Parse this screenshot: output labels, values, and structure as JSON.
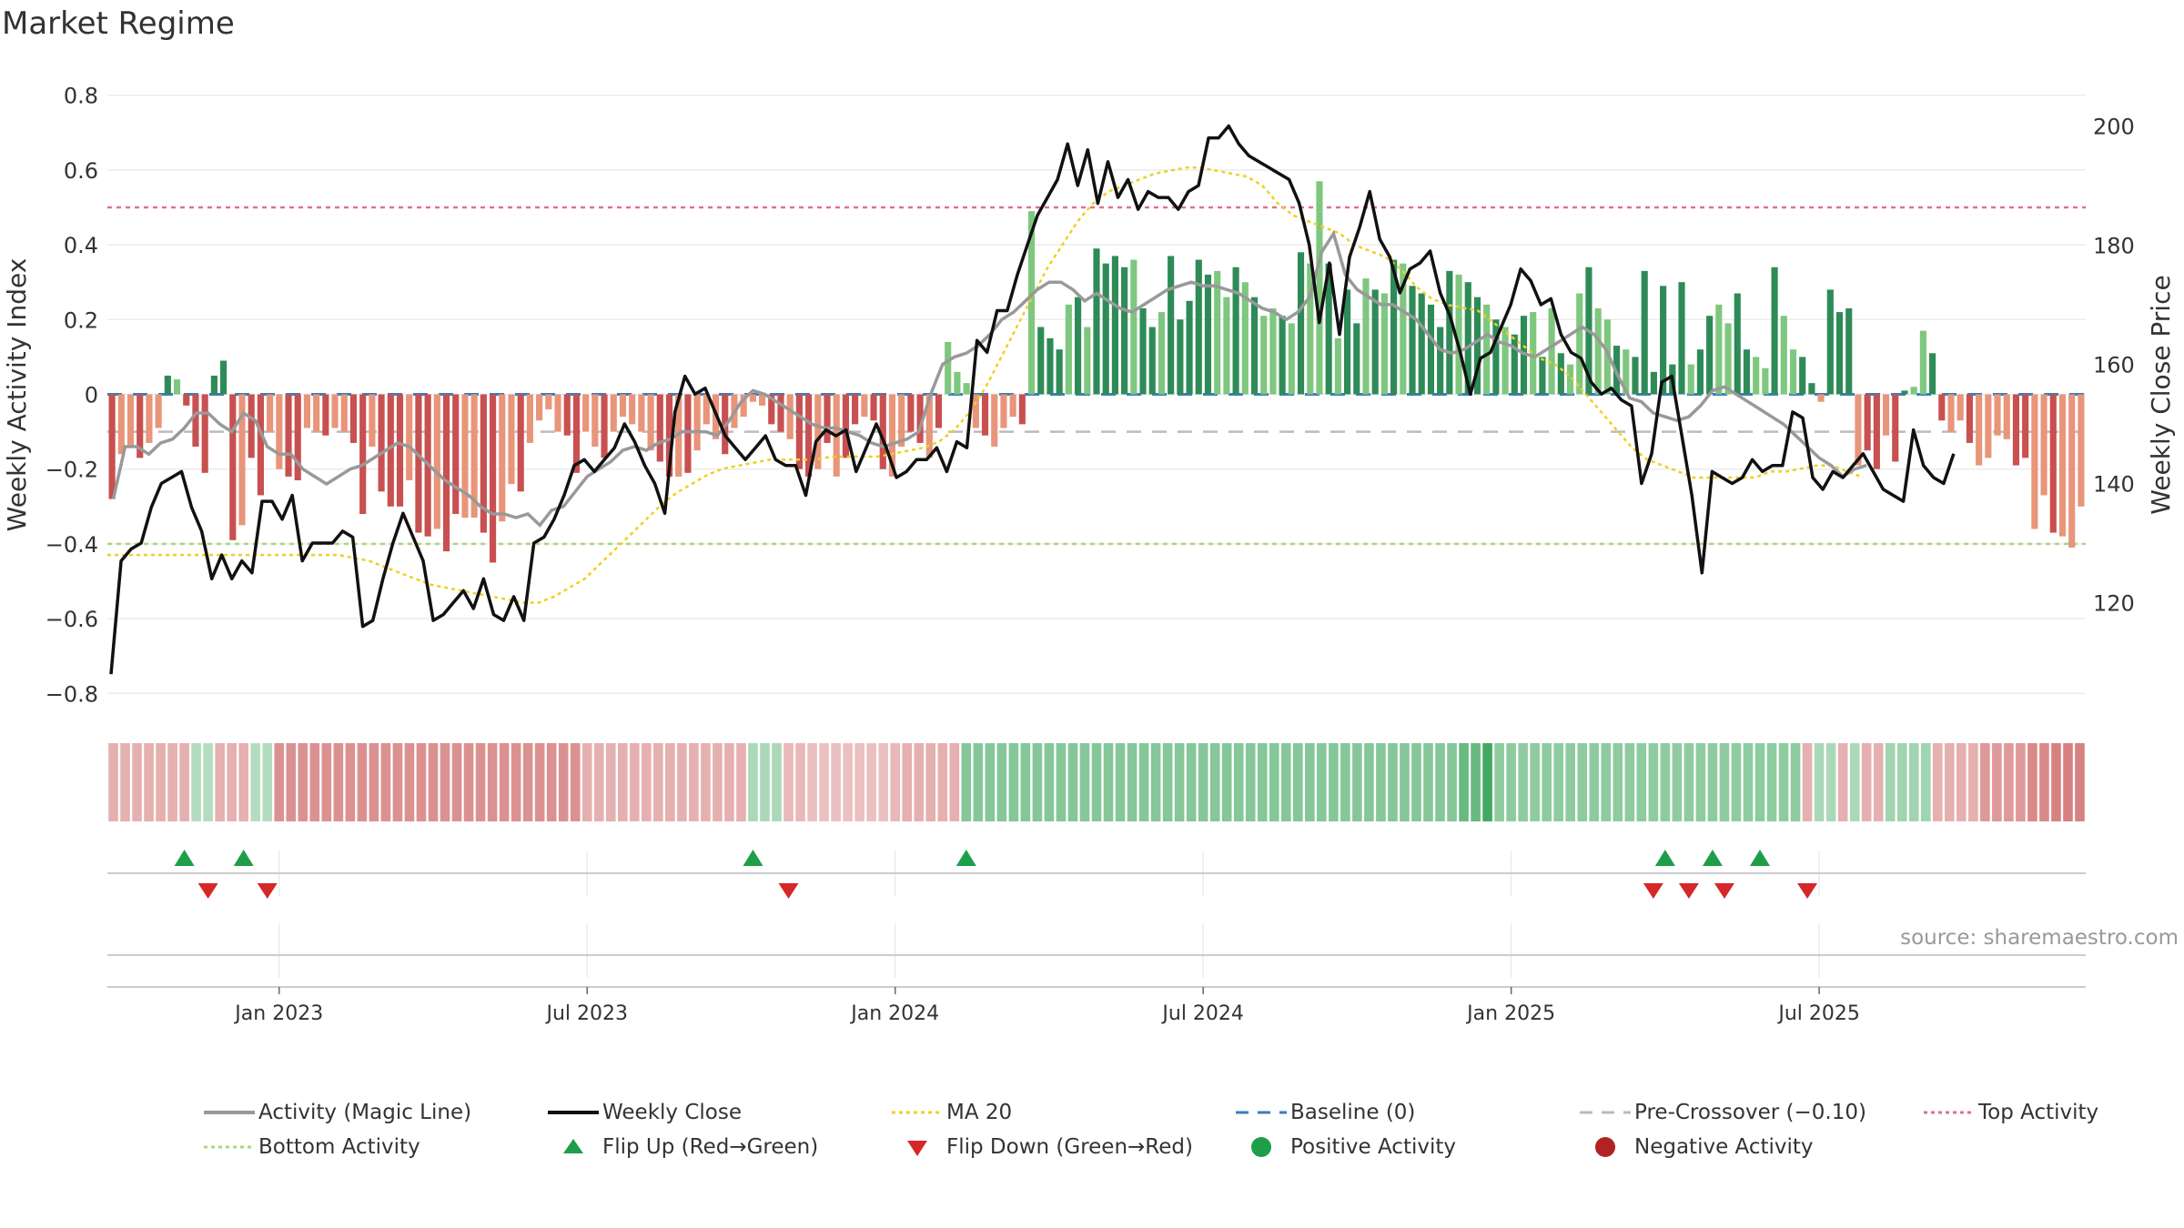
{
  "title": "Market Regime",
  "source": "source: sharemaestro.com",
  "colors": {
    "green_strong": "#2e8b57",
    "green_light": "#7fc77f",
    "red_strong": "#c85050",
    "red_light": "#e8957a",
    "activity_line": "#999999",
    "close_line": "#111111",
    "ma20": "#f0d020",
    "baseline": "#3a7fb8",
    "precross": "#bbbbbb",
    "top_activity": "#e07090",
    "bottom_activity": "#a6d880",
    "flip_up": "#1f9e49",
    "flip_down": "#d62728"
  },
  "legend": [
    {
      "label": "Activity (Magic Line)",
      "icon": "line-solid-grey"
    },
    {
      "label": "Weekly Close",
      "icon": "line-solid-black"
    },
    {
      "label": "MA 20",
      "icon": "line-dotted-yellow"
    },
    {
      "label": "Baseline (0)",
      "icon": "line-dashed-blue"
    },
    {
      "label": "Pre-Crossover (−0.10)",
      "icon": "line-dashed-grey"
    },
    {
      "label": "Top Activity",
      "icon": "line-dotted-pink"
    },
    {
      "label": "Bottom Activity",
      "icon": "line-dotted-green"
    },
    {
      "label": "Flip Up (Red→Green)",
      "icon": "triangle-up-green"
    },
    {
      "label": "Flip Down (Green→Red)",
      "icon": "triangle-down-red"
    },
    {
      "label": "Positive Activity",
      "icon": "circle-green"
    },
    {
      "label": "Negative Activity",
      "icon": "circle-red"
    }
  ],
  "chart_data": {
    "type": "bar",
    "ylabel": "Weekly Activity Index",
    "y2label": "Weekly Close Price",
    "ylim": [
      -0.8,
      0.8
    ],
    "y2lim": [
      105,
      210
    ],
    "yticks": [
      "0.8",
      "0.6",
      "0.4",
      "0.2",
      "0",
      "−0.2",
      "−0.4",
      "−0.6",
      "−0.8"
    ],
    "yticks_values": [
      0.8,
      0.6,
      0.4,
      0.2,
      0,
      -0.2,
      -0.4,
      -0.6,
      -0.8
    ],
    "y2ticks": [
      "200",
      "180",
      "160",
      "140",
      "120"
    ],
    "y2ticks_values": [
      200,
      180,
      160,
      140,
      120
    ],
    "xticks": [
      "Jan 2023",
      "Jul 2023",
      "Jan 2024",
      "Jul 2024",
      "Jan 2025",
      "Jul 2025"
    ],
    "xticks_week": [
      14,
      40,
      66,
      92,
      118,
      144
    ],
    "reference_lines": {
      "baseline": 0,
      "pre_crossover": -0.1,
      "top_activity": 0.5,
      "bottom_activity": -0.4
    },
    "grid": true,
    "legend_position": "bottom",
    "activity": [
      -0.28,
      -0.14,
      -0.14,
      -0.16,
      -0.13,
      -0.12,
      -0.09,
      -0.05,
      -0.05,
      -0.08,
      -0.1,
      -0.05,
      -0.07,
      -0.14,
      -0.16,
      -0.16,
      -0.2,
      -0.22,
      -0.24,
      -0.22,
      -0.2,
      -0.19,
      -0.17,
      -0.15,
      -0.13,
      -0.14,
      -0.17,
      -0.2,
      -0.23,
      -0.25,
      -0.27,
      -0.3,
      -0.32,
      -0.32,
      -0.33,
      -0.32,
      -0.35,
      -0.31,
      -0.3,
      -0.26,
      -0.22,
      -0.2,
      -0.18,
      -0.15,
      -0.14,
      -0.15,
      -0.13,
      -0.12,
      -0.1,
      -0.1,
      -0.1,
      -0.11,
      -0.07,
      -0.02,
      0.01,
      0.0,
      -0.02,
      -0.04,
      -0.06,
      -0.08,
      -0.09,
      -0.09,
      -0.1,
      -0.11,
      -0.13,
      -0.14,
      -0.13,
      -0.12,
      -0.1,
      0.0,
      0.08,
      0.1,
      0.11,
      0.13,
      0.16,
      0.2,
      0.22,
      0.25,
      0.28,
      0.3,
      0.3,
      0.28,
      0.25,
      0.27,
      0.25,
      0.23,
      0.22,
      0.24,
      0.26,
      0.28,
      0.29,
      0.3,
      0.29,
      0.29,
      0.28,
      0.27,
      0.25,
      0.23,
      0.22,
      0.2,
      0.22,
      0.26,
      0.38,
      0.43,
      0.32,
      0.28,
      0.26,
      0.24,
      0.24,
      0.22,
      0.2,
      0.16,
      0.12,
      0.11,
      0.12,
      0.14,
      0.16,
      0.14,
      0.13,
      0.11,
      0.1,
      0.12,
      0.14,
      0.16,
      0.18,
      0.16,
      0.12,
      0.05,
      -0.01,
      -0.02,
      -0.05,
      -0.06,
      -0.07,
      -0.06,
      -0.03,
      0.01,
      0.02,
      0.0,
      -0.02,
      -0.04,
      -0.06,
      -0.08,
      -0.11,
      -0.14,
      -0.17,
      -0.19,
      -0.22,
      -0.2,
      -0.19
    ],
    "bars": [
      -0.28,
      -0.16,
      -0.14,
      -0.17,
      -0.13,
      -0.09,
      0.05,
      0.04,
      -0.03,
      -0.14,
      -0.21,
      0.05,
      0.09,
      -0.39,
      -0.35,
      -0.17,
      -0.27,
      -0.1,
      -0.2,
      -0.22,
      -0.23,
      -0.09,
      -0.1,
      -0.11,
      -0.09,
      -0.1,
      -0.13,
      -0.32,
      -0.14,
      -0.26,
      -0.3,
      -0.3,
      -0.23,
      -0.37,
      -0.38,
      -0.36,
      -0.42,
      -0.32,
      -0.33,
      -0.33,
      -0.37,
      -0.45,
      -0.34,
      -0.24,
      -0.26,
      -0.13,
      -0.07,
      -0.04,
      -0.1,
      -0.11,
      -0.21,
      -0.1,
      -0.14,
      -0.17,
      -0.1,
      -0.06,
      -0.08,
      -0.1,
      -0.15,
      -0.18,
      -0.22,
      -0.22,
      -0.21,
      -0.15,
      -0.08,
      -0.12,
      -0.16,
      -0.09,
      -0.06,
      -0.02,
      -0.03,
      -0.08,
      -0.1,
      -0.12,
      -0.2,
      -0.22,
      -0.2,
      -0.13,
      -0.22,
      -0.17,
      -0.08,
      -0.06,
      -0.07,
      -0.2,
      -0.22,
      -0.14,
      -0.1,
      -0.13,
      -0.17,
      -0.09,
      0.14,
      0.06,
      0.03,
      -0.09,
      -0.11,
      -0.14,
      -0.09,
      -0.06,
      -0.08,
      0.49,
      0.18,
      0.15,
      0.12,
      0.24,
      0.26,
      0.18,
      0.39,
      0.35,
      0.37,
      0.34,
      0.36,
      0.23,
      0.18,
      0.22,
      0.37,
      0.2,
      0.25,
      0.36,
      0.32,
      0.33,
      0.26,
      0.34,
      0.3,
      0.26,
      0.21,
      0.23,
      0.21,
      0.19,
      0.38,
      0.35,
      0.57,
      0.35,
      0.15,
      0.28,
      0.19,
      0.31,
      0.28,
      0.27,
      0.36,
      0.35,
      0.29,
      0.27,
      0.24,
      0.18,
      0.33,
      0.32,
      0.3,
      0.26,
      0.24,
      0.2,
      0.18,
      0.16,
      0.21,
      0.22,
      0.1,
      0.23,
      0.11,
      0.08,
      0.27,
      0.34,
      0.23,
      0.2,
      0.13,
      0.12,
      0.1,
      0.33,
      0.06,
      0.29,
      0.08,
      0.3,
      0.08,
      0.12,
      0.21,
      0.24,
      0.19,
      0.27,
      0.12,
      0.1,
      0.07,
      0.34,
      0.21,
      0.12,
      0.1,
      0.03,
      -0.02,
      0.28,
      0.22,
      0.23,
      -0.19,
      -0.15,
      -0.2,
      -0.11,
      -0.18,
      0.01,
      0.02,
      0.17,
      0.11,
      -0.07,
      -0.1,
      -0.07,
      -0.13,
      -0.19,
      -0.17,
      -0.11,
      -0.12,
      -0.19,
      -0.17,
      -0.36,
      -0.27,
      -0.37,
      -0.38,
      -0.41,
      -0.3
    ],
    "bar_strength": [
      1,
      0,
      0,
      1,
      0,
      0,
      1,
      0,
      1,
      1,
      1,
      1,
      1,
      1,
      0,
      1,
      1,
      0,
      0,
      1,
      1,
      0,
      0,
      1,
      0,
      0,
      1,
      1,
      0,
      1,
      1,
      1,
      0,
      1,
      1,
      0,
      1,
      1,
      0,
      0,
      1,
      1,
      0,
      0,
      1,
      0,
      0,
      0,
      0,
      1,
      1,
      0,
      0,
      1,
      0,
      0,
      0,
      0,
      0,
      1,
      1,
      0,
      1,
      0,
      0,
      0,
      1,
      0,
      0,
      0,
      0,
      1,
      1,
      0,
      1,
      1,
      0,
      1,
      0,
      1,
      1,
      0,
      1,
      1,
      0,
      0,
      1,
      1,
      0,
      1,
      0,
      0,
      0,
      0,
      1,
      0,
      0,
      0,
      1,
      0,
      1,
      1,
      1,
      0,
      1,
      0,
      1,
      1,
      1,
      1,
      0,
      1,
      1,
      0,
      1,
      1,
      1,
      1,
      1,
      0,
      0,
      1,
      0,
      1,
      0,
      0,
      1,
      0,
      1,
      0,
      0,
      1,
      0,
      1,
      1,
      0,
      1,
      0,
      1,
      0,
      1,
      1,
      1,
      1,
      1,
      0,
      1,
      1,
      0,
      1,
      0,
      1,
      1,
      0,
      1,
      0
    ],
    "weekly_close": [
      108,
      127,
      129,
      130,
      136,
      140,
      141,
      142,
      136,
      132,
      124,
      128,
      124,
      127,
      125,
      137,
      137,
      134,
      138,
      127,
      130,
      130,
      130,
      132,
      131,
      116,
      117,
      124,
      130,
      135,
      131,
      127,
      117,
      118,
      120,
      122,
      119,
      124,
      118,
      117,
      121,
      117,
      130,
      131,
      134,
      138,
      143,
      144,
      142,
      144,
      146,
      150,
      147,
      143,
      140,
      135,
      152,
      158,
      155,
      156,
      152,
      148,
      146,
      144,
      146,
      148,
      144,
      143,
      143,
      138,
      147,
      149,
      148,
      149,
      142,
      146,
      150,
      146,
      141,
      142,
      144,
      144,
      146,
      142,
      147,
      146,
      164,
      162,
      169,
      169,
      175,
      180,
      185,
      188,
      191,
      197,
      190,
      196,
      187,
      194,
      188,
      191,
      186,
      189,
      188,
      188,
      186,
      189,
      190,
      198,
      198,
      200,
      197,
      195,
      194,
      193,
      192,
      191,
      187,
      180,
      167,
      177,
      165,
      178,
      183,
      189,
      181,
      178,
      172,
      176,
      177,
      179,
      172,
      168,
      162,
      155,
      161,
      162,
      166,
      170,
      176,
      174,
      170,
      171,
      165,
      162,
      161,
      157,
      155,
      156,
      154,
      153,
      140,
      145,
      157,
      158,
      148,
      138,
      125,
      142,
      141,
      140,
      141,
      144,
      142,
      143,
      143,
      152,
      151,
      141,
      139,
      142,
      141,
      143,
      145,
      142,
      139,
      138,
      137,
      149,
      143,
      141,
      140,
      145
    ],
    "weekly_close_step": 0.85,
    "ma20": [
      128,
      128,
      128,
      128,
      128,
      128,
      128,
      128,
      128,
      128,
      128,
      128,
      128,
      128,
      128,
      128,
      127.5,
      127,
      126,
      125,
      124,
      123,
      122.5,
      122,
      121.5,
      121,
      120.5,
      120,
      120,
      121,
      122.5,
      124,
      126.5,
      129,
      131.5,
      134,
      136.5,
      138.5,
      140,
      141.5,
      142.5,
      143,
      143.5,
      144,
      144,
      144,
      144,
      144.5,
      144.5,
      144.5,
      144.5,
      145,
      145.5,
      146,
      147,
      149,
      152,
      156,
      161,
      166,
      171,
      176,
      180,
      184,
      187,
      189,
      190,
      191,
      192,
      192.5,
      193,
      193,
      192.5,
      192,
      191.5,
      190,
      187,
      185,
      184,
      183,
      182,
      180,
      179,
      178,
      176,
      173,
      171,
      170,
      169.5,
      169,
      167,
      165,
      163,
      161,
      160,
      158,
      155,
      152,
      149,
      146,
      144,
      143,
      142,
      141,
      141,
      141,
      141,
      141,
      142,
      142,
      142.5,
      143,
      143,
      142,
      141
    ],
    "ma20_start": 0,
    "ma20_step": 1.3,
    "regime_strip": [
      0.3,
      0.3,
      0.3,
      0.3,
      0.3,
      0.3,
      0.3,
      -0.2,
      -0.2,
      0.3,
      0.3,
      0.3,
      -0.2,
      -0.2,
      0.5,
      0.5,
      0.5,
      0.5,
      0.5,
      0.5,
      0.5,
      0.5,
      0.5,
      0.5,
      0.5,
      0.5,
      0.5,
      0.5,
      0.5,
      0.5,
      0.5,
      0.5,
      0.5,
      0.5,
      0.5,
      0.5,
      0.5,
      0.5,
      0.5,
      0.5,
      0.3,
      0.3,
      0.3,
      0.3,
      0.3,
      0.3,
      0.3,
      0.3,
      0.3,
      0.3,
      0.3,
      0.3,
      0.3,
      0.3,
      -0.25,
      -0.25,
      -0.25,
      0.25,
      0.25,
      0.2,
      0.2,
      0.2,
      0.2,
      0.2,
      0.2,
      0.2,
      0.25,
      0.3,
      0.3,
      0.3,
      0.3,
      0.3,
      -0.45,
      -0.45,
      -0.45,
      -0.45,
      -0.45,
      -0.45,
      -0.45,
      -0.45,
      -0.45,
      -0.45,
      -0.45,
      -0.45,
      -0.45,
      -0.45,
      -0.45,
      -0.45,
      -0.45,
      -0.45,
      -0.45,
      -0.45,
      -0.45,
      -0.45,
      -0.45,
      -0.45,
      -0.45,
      -0.45,
      -0.45,
      -0.45,
      -0.45,
      -0.45,
      -0.45,
      -0.45,
      -0.45,
      -0.45,
      -0.45,
      -0.45,
      -0.45,
      -0.45,
      -0.45,
      -0.45,
      -0.45,
      -0.45,
      -0.6,
      -0.6,
      -0.8,
      -0.4,
      -0.4,
      -0.4,
      -0.4,
      -0.4,
      -0.4,
      -0.4,
      -0.4,
      -0.4,
      -0.4,
      -0.4,
      -0.4,
      -0.4,
      -0.4,
      -0.4,
      -0.4,
      -0.4,
      -0.4,
      -0.4,
      -0.4,
      -0.4,
      -0.4,
      -0.4,
      -0.4,
      -0.4,
      -0.4,
      0.3,
      -0.25,
      -0.25,
      0.3,
      -0.25,
      0.3,
      0.3,
      -0.3,
      -0.3,
      -0.3,
      -0.3,
      0.3,
      0.3,
      0.3,
      0.3,
      0.45,
      0.45,
      0.45,
      0.45,
      0.55,
      0.55,
      0.6,
      0.6,
      0.6
    ],
    "flip_up_weeks": [
      6,
      11,
      54,
      72,
      131,
      135,
      139
    ],
    "flip_down_weeks": [
      8,
      13,
      57,
      130,
      133,
      136,
      143
    ]
  }
}
